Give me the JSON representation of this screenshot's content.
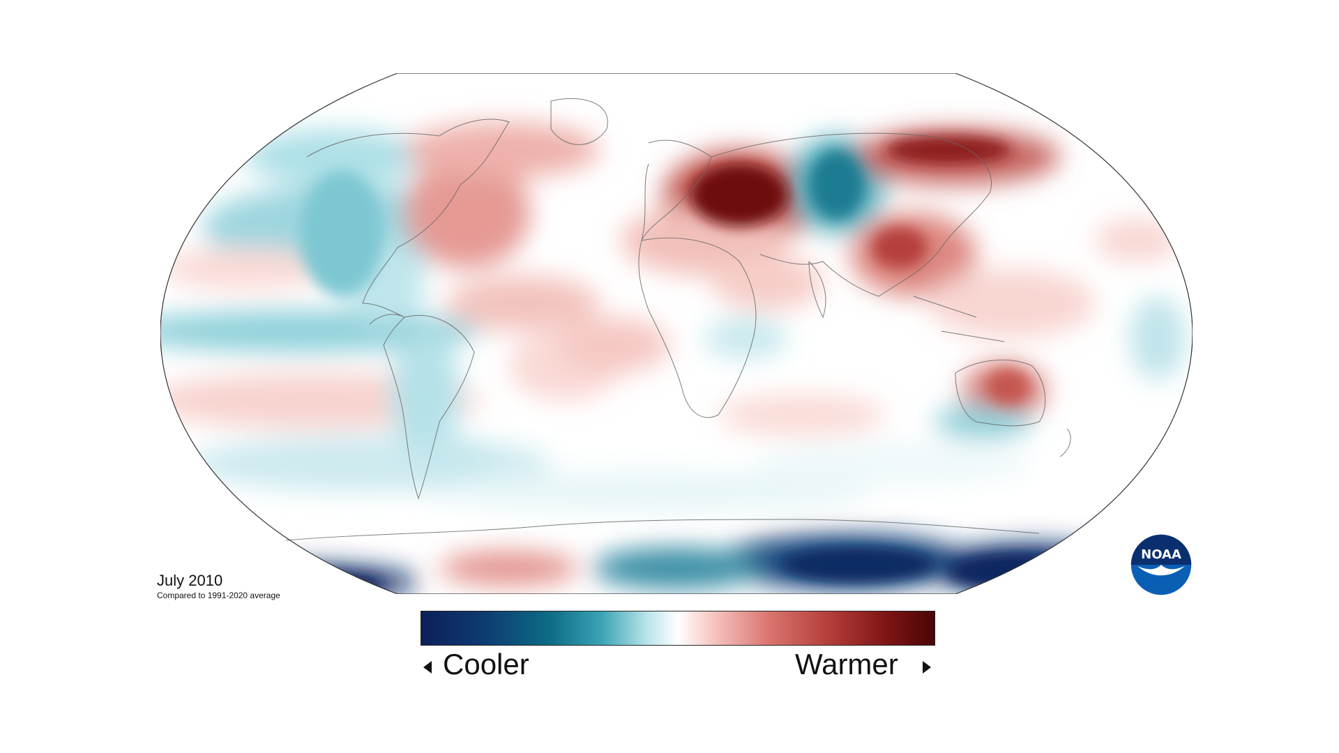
{
  "map": {
    "title": "July 2010",
    "subtitle": "Compared to 1991-2020 average",
    "projection": "Robinson",
    "variable": "temperature anomaly"
  },
  "legend": {
    "low_label": "Cooler",
    "high_label": "Warmer",
    "low_color": "#0d1f5a",
    "mid_color": "#ffffff",
    "high_color": "#4a0606"
  },
  "logo": {
    "text": "NOAA",
    "icon": "noaa-logo-icon",
    "primary_color": "#0a5fb5",
    "dark_color": "#0a2f6e"
  },
  "colors": {
    "strong_warm": "#6e0c0c",
    "warm": "#d9736e",
    "light_warm": "#f5c9c4",
    "light_cool": "#bfe6ec",
    "cool": "#3aa3b4",
    "strong_cool": "#0d2a63",
    "coastline": "#555555"
  }
}
